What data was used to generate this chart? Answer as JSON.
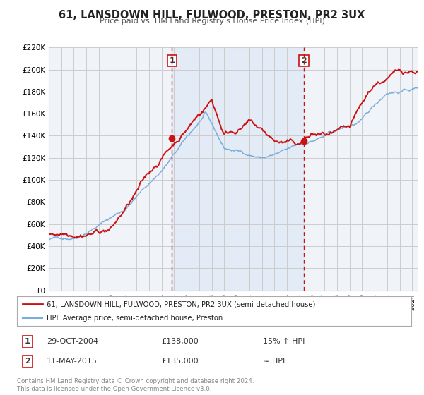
{
  "title": "61, LANSDOWN HILL, FULWOOD, PRESTON, PR2 3UX",
  "subtitle": "Price paid vs. HM Land Registry's House Price Index (HPI)",
  "ylim": [
    0,
    220000
  ],
  "yticks": [
    0,
    20000,
    40000,
    60000,
    80000,
    100000,
    120000,
    140000,
    160000,
    180000,
    200000,
    220000
  ],
  "ytick_labels": [
    "£0",
    "£20K",
    "£40K",
    "£60K",
    "£80K",
    "£100K",
    "£120K",
    "£140K",
    "£160K",
    "£180K",
    "£200K",
    "£220K"
  ],
  "hpi_color": "#7aaddc",
  "price_color": "#cc1111",
  "vline_color": "#cc1111",
  "background_color": "#ffffff",
  "grid_color": "#cccccc",
  "chart_bg": "#f8f8f8",
  "sale1_date_num": 2004.83,
  "sale1_price": 138000,
  "sale1_label": "1",
  "sale2_date_num": 2015.36,
  "sale2_price": 135000,
  "sale2_label": "2",
  "legend_line1": "61, LANSDOWN HILL, FULWOOD, PRESTON, PR2 3UX (semi-detached house)",
  "legend_line2": "HPI: Average price, semi-detached house, Preston",
  "table_row1_num": "1",
  "table_row1_date": "29-OCT-2004",
  "table_row1_price": "£138,000",
  "table_row1_hpi": "15% ↑ HPI",
  "table_row2_num": "2",
  "table_row2_date": "11-MAY-2015",
  "table_row2_price": "£135,000",
  "table_row2_hpi": "≈ HPI",
  "footer": "Contains HM Land Registry data © Crown copyright and database right 2024.\nThis data is licensed under the Open Government Licence v3.0.",
  "xmin": 1995.0,
  "xmax": 2024.5
}
